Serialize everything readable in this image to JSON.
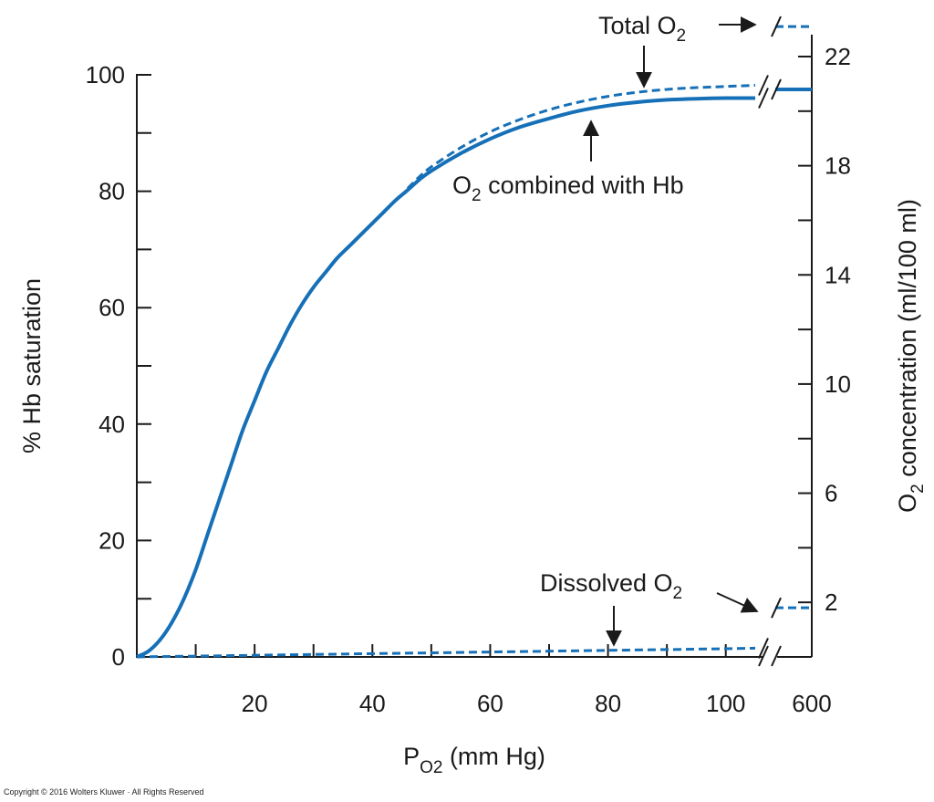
{
  "copyright": "Copyright © 2016 Wolters Kluwer · All Rights Reserved",
  "colors": {
    "curve": "#1670b8",
    "axis": "#1a1a1a"
  },
  "chart_data": {
    "type": "line",
    "xlabel": "PO2 (mm Hg)",
    "xlabel_parts": {
      "main": "P",
      "sub": "O2",
      "suffix": " (mm Hg)"
    },
    "ylabel_left": "% Hb saturation",
    "ylabel_right": "O2 concentration (ml/100 ml)",
    "ylabel_right_parts": {
      "main": "O",
      "sub": "2",
      "suffix": " concentration (ml/100 ml)"
    },
    "x_ticks": [
      "20",
      "40",
      "60",
      "80",
      "100",
      "600"
    ],
    "x_break_label": "600",
    "y_left_ticks": [
      "0",
      "20",
      "40",
      "60",
      "80",
      "100"
    ],
    "y_right_ticks": [
      "2",
      "6",
      "10",
      "14",
      "18",
      "22"
    ],
    "xlim": [
      0,
      105
    ],
    "ylim_left": [
      0,
      100
    ],
    "ylim_right": [
      0,
      23.5
    ],
    "axis_break": true,
    "series": [
      {
        "name": "O2 combined with Hb",
        "style": "solid",
        "axis": "left",
        "x": [
          0,
          2,
          4,
          6,
          8,
          10,
          12,
          14,
          16,
          18,
          20,
          22,
          24,
          26,
          28,
          30,
          32,
          34,
          36,
          38,
          40,
          42,
          44,
          46,
          48,
          50,
          55,
          60,
          65,
          70,
          75,
          80,
          85,
          90,
          95,
          100,
          105
        ],
        "y": [
          0,
          1,
          3,
          6,
          10,
          15,
          21,
          27,
          33,
          39,
          44,
          49,
          53,
          57,
          60.5,
          63.5,
          66,
          68.5,
          70.5,
          72.5,
          74.5,
          76.5,
          78.5,
          80.2,
          82,
          83.5,
          86.5,
          89,
          91,
          92.5,
          93.8,
          94.7,
          95.3,
          95.7,
          95.9,
          96,
          96
        ],
        "value_at_600": 97.5
      },
      {
        "name": "Total O2",
        "style": "dashed",
        "axis": "left",
        "x": [
          46,
          48,
          50,
          55,
          60,
          65,
          70,
          75,
          80,
          85,
          90,
          95,
          100,
          105
        ],
        "y": [
          80.5,
          82.5,
          84.2,
          87.5,
          90.2,
          92.3,
          94,
          95.3,
          96.3,
          97,
          97.5,
          97.8,
          98,
          98.2
        ],
        "value_at_600": 23.1
      },
      {
        "name": "Dissolved O2",
        "style": "dashed",
        "axis": "right",
        "x": [
          0,
          20,
          40,
          60,
          80,
          100,
          105
        ],
        "y": [
          0,
          0.06,
          0.12,
          0.18,
          0.24,
          0.3,
          0.32
        ],
        "value_at_600": 1.8
      }
    ],
    "annotations": [
      {
        "id": "total",
        "main": "Total O",
        "sub": "2"
      },
      {
        "id": "combined",
        "main": "O",
        "sub": "2",
        "rest": " combined with Hb"
      },
      {
        "id": "dissolved",
        "main": "Dissolved O",
        "sub": "2"
      }
    ]
  }
}
